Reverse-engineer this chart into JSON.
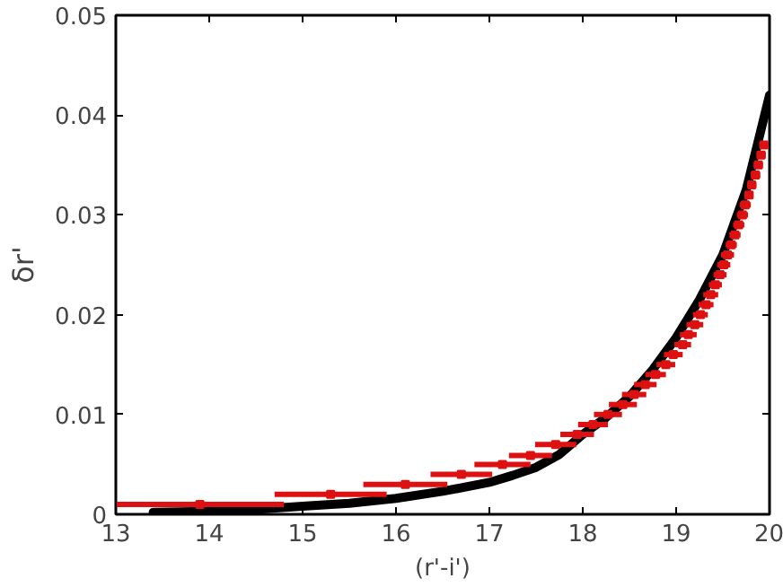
{
  "chart_data": {
    "type": "scatter",
    "xlabel": "(r'-i')",
    "ylabel": "δr'",
    "xlim": [
      13,
      20
    ],
    "ylim": [
      0,
      0.05
    ],
    "xticks": [
      13,
      14,
      15,
      16,
      17,
      18,
      19,
      20
    ],
    "yticks": [
      0,
      0.01,
      0.02,
      0.03,
      0.04,
      0.05
    ],
    "grid": false,
    "series": [
      {
        "type": "line",
        "marker": "none",
        "color": "#000000",
        "x": [
          13.4,
          14,
          14.5,
          15,
          15.5,
          16,
          16.5,
          17,
          17.25,
          17.5,
          17.75,
          18,
          18.25,
          18.5,
          18.75,
          19,
          19.25,
          19.5,
          19.75,
          20
        ],
        "values": [
          0.0002,
          0.0003,
          0.0005,
          0.0008,
          0.0011,
          0.0016,
          0.0023,
          0.0032,
          0.0039,
          0.0047,
          0.006,
          0.008,
          0.0097,
          0.0118,
          0.0145,
          0.0177,
          0.0215,
          0.026,
          0.0325,
          0.042
        ]
      },
      {
        "marker": "square",
        "color": "#dd1111",
        "x": [
          13.9,
          15.3,
          16.1,
          16.7,
          17.14,
          17.44,
          17.71,
          17.94,
          18.11,
          18.27,
          18.43,
          18.55,
          18.67,
          18.78,
          18.89,
          18.97,
          19.07,
          19.13,
          19.2,
          19.26,
          19.32,
          19.37,
          19.42,
          19.47,
          19.51,
          19.55,
          19.59,
          19.63,
          19.67,
          19.71,
          19.74,
          19.78,
          19.81,
          19.85,
          19.88,
          19.91,
          19.94
        ],
        "values": [
          0.001,
          0.002,
          0.003,
          0.004,
          0.005,
          0.0059,
          0.007,
          0.008,
          0.009,
          0.01,
          0.011,
          0.012,
          0.013,
          0.014,
          0.015,
          0.016,
          0.017,
          0.018,
          0.019,
          0.02,
          0.021,
          0.022,
          0.023,
          0.024,
          0.025,
          0.026,
          0.027,
          0.028,
          0.029,
          0.03,
          0.031,
          0.032,
          0.033,
          0.034,
          0.035,
          0.036,
          0.037
        ],
        "xerrors": [
          0.9,
          0.6,
          0.45,
          0.33,
          0.3,
          0.23,
          0.22,
          0.18,
          0.16,
          0.15,
          0.15,
          0.13,
          0.12,
          0.11,
          0.1,
          0.1,
          0.09,
          0.09,
          0.09,
          0.08,
          0.08,
          0.08,
          0.07,
          0.07,
          0.07,
          0.07,
          0.06,
          0.06,
          0.06,
          0.06,
          0.06,
          0.05,
          0.05,
          0.05,
          0.05,
          0.05,
          0.05
        ]
      }
    ]
  }
}
